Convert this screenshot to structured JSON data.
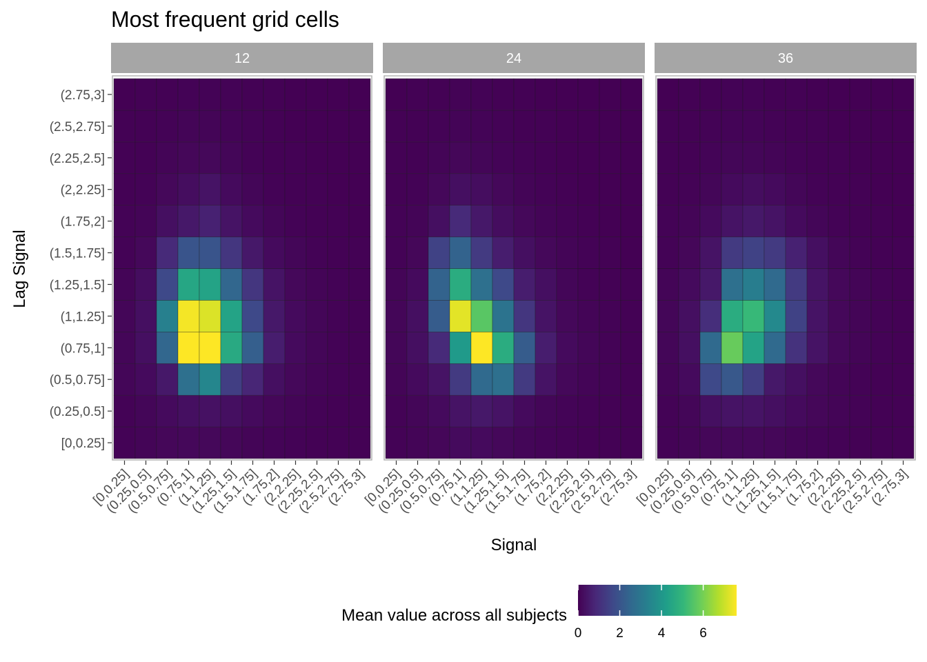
{
  "chart_data": {
    "type": "heatmap",
    "title": "Most frequent grid cells",
    "xlabel": "Signal",
    "ylabel": "Lag Signal",
    "x_categories": [
      "[0,0.25]",
      "(0.25,0.5]",
      "(0.5,0.75]",
      "(0.75,1]",
      "(1,1.25]",
      "(1.25,1.5]",
      "(1.5,1.75]",
      "(1.75,2]",
      "(2,2.25]",
      "(2.25,2.5]",
      "(2.5,2.75]",
      "(2.75,3]"
    ],
    "y_categories": [
      "[0,0.25]",
      "(0.25,0.5]",
      "(0.5,0.75]",
      "(0.75,1]",
      "(1,1.25]",
      "(1.25,1.5]",
      "(1.5,1.75]",
      "(1.75,2]",
      "(2,2.25]",
      "(2.25,2.5]",
      "(2.5,2.75]",
      "(2.75,3]"
    ],
    "facets": [
      {
        "label": "12",
        "values": [
          [
            0.05,
            0.08,
            0.12,
            0.15,
            0.15,
            0.12,
            0.08,
            0.06,
            0.04,
            0.03,
            0.02,
            0.02
          ],
          [
            0.05,
            0.1,
            0.2,
            0.3,
            0.35,
            0.3,
            0.2,
            0.12,
            0.08,
            0.05,
            0.03,
            0.02
          ],
          [
            0.1,
            0.2,
            0.5,
            2.8,
            3.5,
            1.4,
            0.8,
            0.3,
            0.15,
            0.08,
            0.04,
            0.02
          ],
          [
            0.1,
            0.3,
            2.5,
            7.6,
            7.6,
            4.6,
            2.3,
            0.6,
            0.2,
            0.1,
            0.05,
            0.03
          ],
          [
            0.1,
            0.3,
            3.3,
            7.5,
            7.2,
            4.4,
            1.7,
            0.5,
            0.2,
            0.1,
            0.05,
            0.03
          ],
          [
            0.08,
            0.25,
            1.7,
            4.5,
            4.4,
            2.5,
            1.2,
            0.4,
            0.15,
            0.08,
            0.04,
            0.02
          ],
          [
            0.05,
            0.15,
            0.9,
            2.0,
            2.0,
            1.2,
            0.5,
            0.2,
            0.1,
            0.05,
            0.03,
            0.02
          ],
          [
            0.04,
            0.08,
            0.3,
            0.5,
            0.7,
            0.4,
            0.2,
            0.1,
            0.05,
            0.03,
            0.02,
            0.01
          ],
          [
            0.03,
            0.05,
            0.15,
            0.25,
            0.4,
            0.2,
            0.1,
            0.05,
            0.03,
            0.02,
            0.01,
            0.01
          ],
          [
            0.02,
            0.03,
            0.08,
            0.12,
            0.15,
            0.1,
            0.05,
            0.03,
            0.02,
            0.01,
            0.01,
            0.01
          ],
          [
            0.02,
            0.02,
            0.05,
            0.08,
            0.08,
            0.06,
            0.04,
            0.02,
            0.01,
            0.01,
            0.01,
            0.01
          ],
          [
            0.01,
            0.02,
            0.03,
            0.05,
            0.05,
            0.04,
            0.03,
            0.02,
            0.01,
            0.01,
            0.01,
            0.01
          ]
        ]
      },
      {
        "label": "24",
        "values": [
          [
            0.05,
            0.08,
            0.12,
            0.2,
            0.2,
            0.15,
            0.1,
            0.06,
            0.04,
            0.03,
            0.02,
            0.02
          ],
          [
            0.05,
            0.1,
            0.2,
            0.4,
            0.5,
            0.4,
            0.2,
            0.1,
            0.06,
            0.04,
            0.03,
            0.02
          ],
          [
            0.08,
            0.2,
            0.4,
            1.3,
            2.6,
            2.8,
            1.3,
            0.4,
            0.15,
            0.08,
            0.04,
            0.02
          ],
          [
            0.1,
            0.3,
            0.9,
            4.1,
            7.6,
            4.7,
            2.2,
            0.6,
            0.2,
            0.1,
            0.05,
            0.03
          ],
          [
            0.1,
            0.3,
            2.2,
            7.3,
            5.6,
            2.9,
            1.2,
            0.4,
            0.15,
            0.08,
            0.04,
            0.02
          ],
          [
            0.08,
            0.2,
            2.4,
            4.7,
            2.8,
            1.7,
            0.6,
            0.3,
            0.1,
            0.05,
            0.03,
            0.02
          ],
          [
            0.05,
            0.12,
            1.5,
            2.4,
            1.3,
            0.6,
            0.3,
            0.15,
            0.08,
            0.04,
            0.02,
            0.01
          ],
          [
            0.04,
            0.08,
            0.3,
            0.9,
            0.5,
            0.25,
            0.15,
            0.08,
            0.04,
            0.02,
            0.01,
            0.01
          ],
          [
            0.03,
            0.05,
            0.15,
            0.3,
            0.25,
            0.15,
            0.08,
            0.04,
            0.02,
            0.01,
            0.01,
            0.01
          ],
          [
            0.02,
            0.03,
            0.08,
            0.12,
            0.1,
            0.06,
            0.04,
            0.02,
            0.01,
            0.01,
            0.01,
            0.01
          ],
          [
            0.02,
            0.02,
            0.05,
            0.06,
            0.06,
            0.04,
            0.03,
            0.02,
            0.01,
            0.01,
            0.01,
            0.01
          ],
          [
            0.01,
            0.02,
            0.03,
            0.04,
            0.04,
            0.03,
            0.02,
            0.01,
            0.01,
            0.01,
            0.01,
            0.01
          ]
        ]
      },
      {
        "label": "36",
        "values": [
          [
            0.05,
            0.08,
            0.12,
            0.15,
            0.15,
            0.12,
            0.08,
            0.06,
            0.04,
            0.03,
            0.02,
            0.02
          ],
          [
            0.05,
            0.1,
            0.3,
            0.4,
            0.4,
            0.3,
            0.2,
            0.12,
            0.08,
            0.05,
            0.03,
            0.02
          ],
          [
            0.08,
            0.2,
            1.7,
            2.1,
            1.4,
            0.5,
            0.3,
            0.15,
            0.08,
            0.05,
            0.03,
            0.02
          ],
          [
            0.1,
            0.3,
            2.6,
            5.8,
            4.4,
            2.6,
            1.1,
            0.4,
            0.15,
            0.08,
            0.04,
            0.02
          ],
          [
            0.1,
            0.3,
            1.0,
            4.7,
            5.1,
            3.6,
            1.5,
            0.4,
            0.15,
            0.08,
            0.04,
            0.02
          ],
          [
            0.08,
            0.2,
            0.5,
            2.8,
            3.2,
            2.6,
            1.3,
            0.4,
            0.15,
            0.08,
            0.04,
            0.02
          ],
          [
            0.05,
            0.12,
            0.4,
            1.3,
            1.5,
            1.3,
            0.7,
            0.3,
            0.1,
            0.05,
            0.03,
            0.02
          ],
          [
            0.04,
            0.08,
            0.2,
            0.4,
            0.5,
            0.4,
            0.2,
            0.1,
            0.05,
            0.03,
            0.02,
            0.01
          ],
          [
            0.03,
            0.05,
            0.1,
            0.2,
            0.25,
            0.2,
            0.1,
            0.05,
            0.03,
            0.02,
            0.01,
            0.01
          ],
          [
            0.02,
            0.03,
            0.06,
            0.1,
            0.1,
            0.08,
            0.05,
            0.03,
            0.02,
            0.01,
            0.01,
            0.01
          ],
          [
            0.02,
            0.02,
            0.04,
            0.06,
            0.06,
            0.05,
            0.03,
            0.02,
            0.01,
            0.01,
            0.01,
            0.01
          ],
          [
            0.01,
            0.02,
            0.03,
            0.04,
            0.04,
            0.03,
            0.02,
            0.01,
            0.01,
            0.01,
            0.01,
            0.01
          ]
        ]
      }
    ],
    "colorbar": {
      "title": "Mean value across all subjects",
      "palette": "viridis",
      "range": [
        0,
        7.6
      ],
      "ticks": [
        0,
        2,
        4,
        6
      ],
      "placement": "bottom"
    },
    "grid": false
  },
  "colors": {
    "strip_background": "#a6a6a6",
    "panel_border": "#b3b3b3",
    "viridis": [
      "#440154",
      "#482878",
      "#3e4989",
      "#31688e",
      "#26828e",
      "#1f9e89",
      "#35b779",
      "#6ece58",
      "#b5de2b",
      "#fde725"
    ]
  }
}
